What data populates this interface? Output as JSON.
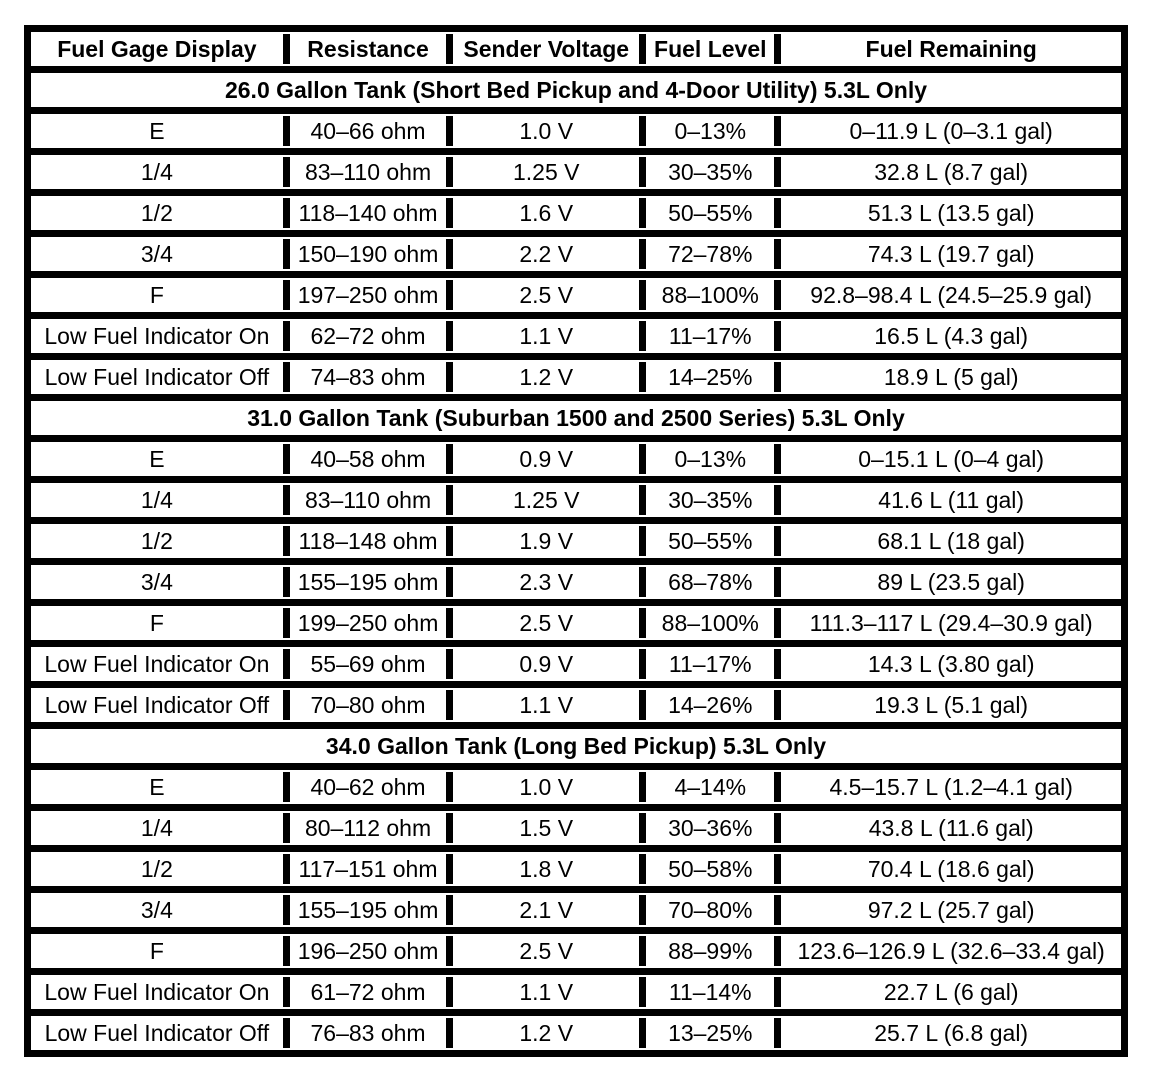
{
  "table": {
    "columns": [
      "Fuel Gage Display",
      "Resistance",
      "Sender Voltage",
      "Fuel Level",
      "Fuel Remaining"
    ],
    "border_color": "#000000",
    "background_color": "#ffffff",
    "sections": [
      {
        "title": "26.0 Gallon Tank (Short Bed Pickup and 4-Door Utility) 5.3L Only",
        "rows": [
          [
            "E",
            "40–66 ohm",
            "1.0 V",
            "0–13%",
            "0–11.9 L (0–3.1 gal)"
          ],
          [
            "1/4",
            "83–110 ohm",
            "1.25 V",
            "30–35%",
            "32.8 L (8.7 gal)"
          ],
          [
            "1/2",
            "118–140 ohm",
            "1.6 V",
            "50–55%",
            "51.3 L (13.5 gal)"
          ],
          [
            "3/4",
            "150–190 ohm",
            "2.2 V",
            "72–78%",
            "74.3 L (19.7 gal)"
          ],
          [
            "F",
            "197–250 ohm",
            "2.5 V",
            "88–100%",
            "92.8–98.4 L (24.5–25.9 gal)"
          ],
          [
            "Low Fuel Indicator On",
            "62–72 ohm",
            "1.1 V",
            "11–17%",
            "16.5 L (4.3 gal)"
          ],
          [
            "Low Fuel Indicator Off",
            "74–83 ohm",
            "1.2 V",
            "14–25%",
            "18.9 L (5 gal)"
          ]
        ]
      },
      {
        "title": "31.0 Gallon Tank (Suburban 1500 and 2500 Series) 5.3L Only",
        "rows": [
          [
            "E",
            "40–58 ohm",
            "0.9 V",
            "0–13%",
            "0–15.1 L (0–4 gal)"
          ],
          [
            "1/4",
            "83–110 ohm",
            "1.25 V",
            "30–35%",
            "41.6 L (11 gal)"
          ],
          [
            "1/2",
            "118–148 ohm",
            "1.9 V",
            "50–55%",
            "68.1 L (18 gal)"
          ],
          [
            "3/4",
            "155–195 ohm",
            "2.3 V",
            "68–78%",
            "89 L (23.5 gal)"
          ],
          [
            "F",
            "199–250 ohm",
            "2.5 V",
            "88–100%",
            "111.3–117 L (29.4–30.9 gal)"
          ],
          [
            "Low Fuel Indicator On",
            "55–69 ohm",
            "0.9 V",
            "11–17%",
            "14.3 L (3.80 gal)"
          ],
          [
            "Low Fuel Indicator Off",
            "70–80 ohm",
            "1.1 V",
            "14–26%",
            "19.3 L (5.1 gal)"
          ]
        ]
      },
      {
        "title": "34.0 Gallon Tank (Long Bed Pickup) 5.3L Only",
        "rows": [
          [
            "E",
            "40–62 ohm",
            "1.0 V",
            "4–14%",
            "4.5–15.7 L (1.2–4.1 gal)"
          ],
          [
            "1/4",
            "80–112 ohm",
            "1.5 V",
            "30–36%",
            "43.8 L (11.6 gal)"
          ],
          [
            "1/2",
            "117–151 ohm",
            "1.8 V",
            "50–58%",
            "70.4 L (18.6 gal)"
          ],
          [
            "3/4",
            "155–195 ohm",
            "2.1 V",
            "70–80%",
            "97.2 L (25.7 gal)"
          ],
          [
            "F",
            "196–250 ohm",
            "2.5 V",
            "88–99%",
            "123.6–126.9 L (32.6–33.4 gal)"
          ],
          [
            "Low Fuel Indicator On",
            "61–72 ohm",
            "1.1 V",
            "11–14%",
            "22.7 L (6 gal)"
          ],
          [
            "Low Fuel Indicator Off",
            "76–83 ohm",
            "1.2 V",
            "13–25%",
            "25.7 L (6.8 gal)"
          ]
        ]
      }
    ]
  }
}
